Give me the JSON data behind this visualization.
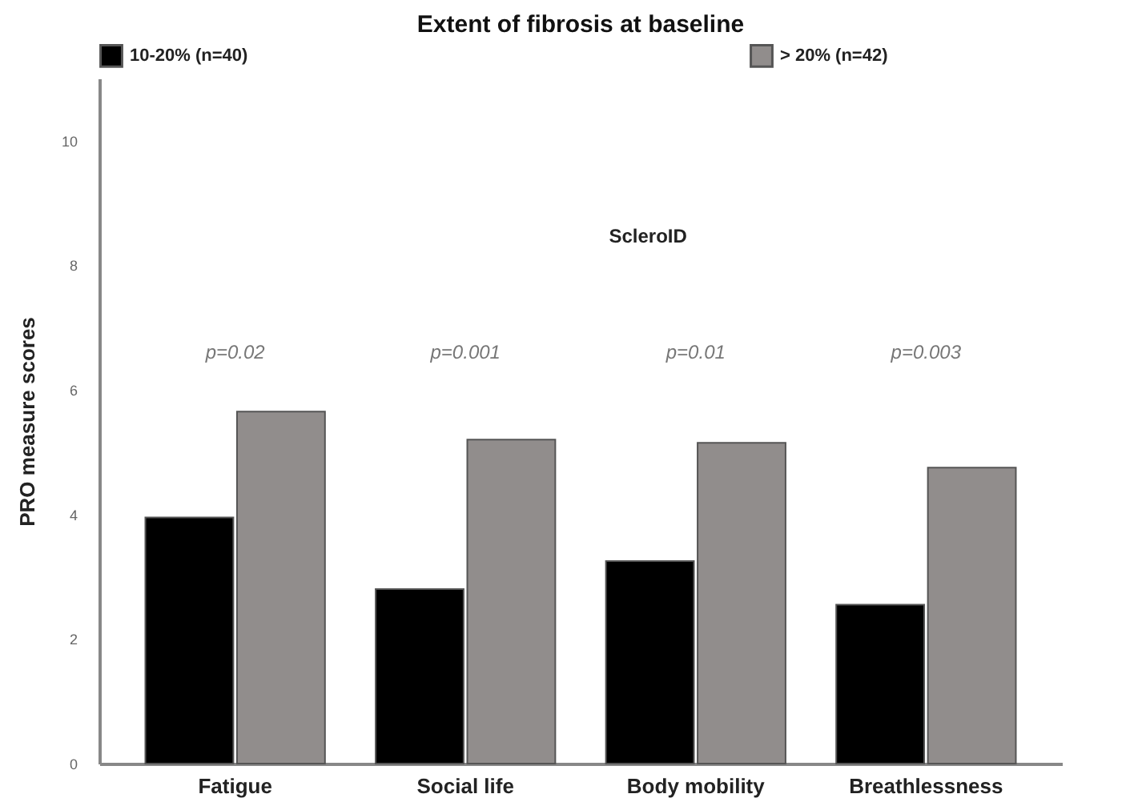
{
  "chart_data": {
    "type": "bar",
    "title": "Extent of fibrosis at baseline",
    "ylabel": "PRO measure scores",
    "categories": [
      "Fatigue",
      "Social life",
      "Body mobility",
      "Breathlessness"
    ],
    "series": [
      {
        "name": "10-20% (n=40)",
        "color": "#000000",
        "values": [
          3.95,
          2.8,
          3.25,
          2.55
        ]
      },
      {
        "name": "> 20% (n=42)",
        "color": "#918d8c",
        "values": [
          5.65,
          5.2,
          5.15,
          4.75
        ]
      }
    ],
    "ylim": [
      0,
      11
    ],
    "yticks": [
      0,
      2,
      4,
      6,
      8,
      10
    ],
    "grid": false,
    "legend": "top",
    "annotations": [
      "ScleroID",
      "p=0.02",
      "p=0.001",
      "p=0.01",
      "p=0.003"
    ]
  }
}
